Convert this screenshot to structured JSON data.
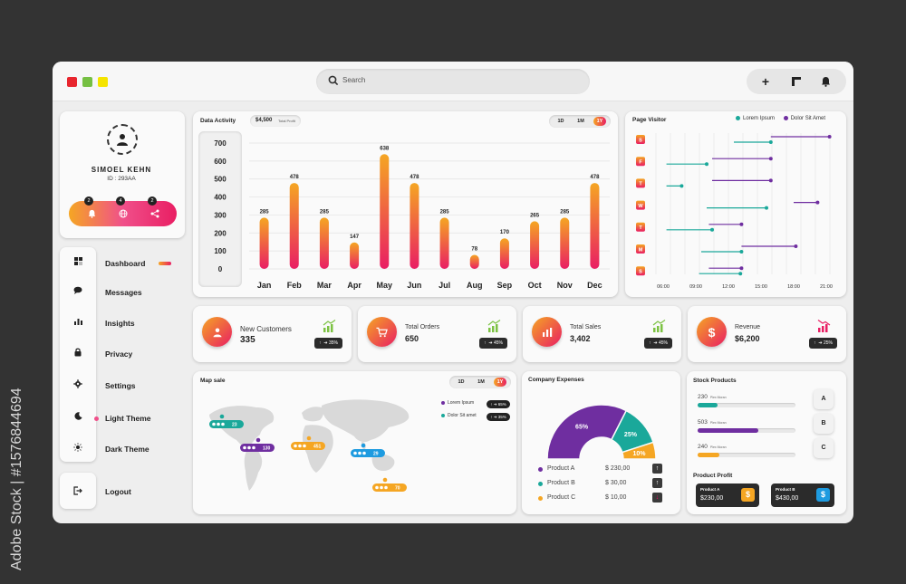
{
  "watermark": "Adobe Stock | #1576844694",
  "search": {
    "placeholder": "Search"
  },
  "profile": {
    "name": "SIMOEL KEHN",
    "id": "ID : 293AA",
    "badges": [
      "2",
      "4",
      "2"
    ]
  },
  "nav": {
    "items": [
      {
        "label": "Dashboard",
        "icon": "grid-icon"
      },
      {
        "label": "Messages",
        "icon": "chat-icon"
      },
      {
        "label": "Insights",
        "icon": "bar-chart-icon"
      },
      {
        "label": "Privacy",
        "icon": "lock-icon"
      },
      {
        "label": "Settings",
        "icon": "gear-icon"
      },
      {
        "label": "Light Theme",
        "icon": "moon-icon"
      },
      {
        "label": "Dark Theme",
        "icon": "sun-icon"
      }
    ],
    "logout": "Logout"
  },
  "data_activity": {
    "title": "Data Activity",
    "total_value": "$4,500",
    "total_label": "Total Profit",
    "ranges": [
      "1D",
      "1M",
      "1Y"
    ],
    "selected_range": "1Y"
  },
  "chart_data": [
    {
      "type": "bar",
      "title": "Data Activity",
      "categories": [
        "Jan",
        "Feb",
        "Mar",
        "Apr",
        "May",
        "Jun",
        "Jul",
        "Aug",
        "Sep",
        "Oct",
        "Nov",
        "Dec"
      ],
      "values": [
        285,
        478,
        285,
        147,
        638,
        478,
        285,
        78,
        170,
        265,
        285,
        478
      ],
      "ylim": [
        0,
        700
      ],
      "yticks": [
        700,
        600,
        500,
        400,
        300,
        200,
        100,
        0
      ],
      "grid": true,
      "colors": [
        "#f5a623",
        "#e91e63"
      ]
    },
    {
      "type": "scatter",
      "title": "Page Visitor",
      "categories": [
        "S",
        "F",
        "T",
        "W",
        "T",
        "M",
        "S"
      ],
      "x_ticks": [
        "06:00",
        "09:00",
        "12:00",
        "15:00",
        "18:00",
        "21:00"
      ],
      "legend_position": "top-right",
      "series": [
        {
          "name": "Lorem Ipsum",
          "color": "#1aa89a",
          "ranges": [
            [
              12.5,
              15.9
            ],
            [
              6.3,
              10.0
            ],
            [
              6.3,
              7.7
            ],
            [
              10.0,
              15.5
            ],
            [
              6.3,
              10.5
            ],
            [
              9.5,
              13.2
            ],
            [
              9.3,
              13.1
            ]
          ]
        },
        {
          "name": "Dolor Sit Amet",
          "color": "#6f2ea0",
          "ranges": [
            [
              15.9,
              21.3
            ],
            [
              10.5,
              15.9
            ],
            [
              10.5,
              15.9
            ],
            [
              18.0,
              20.2
            ],
            [
              10.2,
              13.2
            ],
            [
              13.2,
              18.2
            ],
            [
              10.2,
              13.2
            ]
          ]
        }
      ]
    },
    {
      "type": "scatter",
      "title": "Map sale",
      "ranges": [
        "1D",
        "1M",
        "1Y"
      ],
      "selected_range": "1Y",
      "legend_position": "top-right",
      "series": [
        {
          "name": "Lorem Ipsum",
          "color": "#6f2ea0",
          "change": "65%"
        },
        {
          "name": "Dolor Sit amet",
          "color": "#1aa89a",
          "change": "35%"
        }
      ],
      "markers": [
        {
          "label": "23",
          "color": "#1aa89a"
        },
        {
          "label": "130",
          "color": "#6f2ea0"
        },
        {
          "label": "451",
          "color": "#f5a623"
        },
        {
          "label": "29",
          "color": "#1e9be0"
        },
        {
          "label": "70",
          "color": "#f5a623"
        }
      ]
    },
    {
      "type": "pie",
      "title": "Company Expenses",
      "categories": [
        "Product A",
        "Product B",
        "Product C"
      ],
      "values": [
        65,
        25,
        10
      ],
      "labels": [
        "65%",
        "25%",
        "10%"
      ],
      "colors": [
        "#6f2ea0",
        "#1aa89a",
        "#f5a623"
      ]
    }
  ],
  "stats": [
    {
      "label": "New Customers",
      "value": "335",
      "change": "35%",
      "icon": "user-icon"
    },
    {
      "label": "Total Orders",
      "value": "650",
      "change": "45%",
      "icon": "cart-icon"
    },
    {
      "label": "Total Sales",
      "value": "3,402",
      "change": "45%",
      "icon": "chart-icon"
    },
    {
      "label": "Revenue",
      "value": "$6,200",
      "change": "25%",
      "icon": "dollar-icon"
    }
  ],
  "expenses": {
    "rows": [
      {
        "name": "Product A",
        "value": "$ 230,00",
        "trend": "up"
      },
      {
        "name": "Product B",
        "value": "$ 30,00",
        "trend": "up"
      },
      {
        "name": "Product C",
        "value": "$ 10,00",
        "trend": "down"
      }
    ]
  },
  "stock": {
    "title": "Stock Products",
    "items": [
      {
        "value": "230",
        "sub": "Plex Moran",
        "level": 0.2,
        "color": "#1aa89a",
        "button": "A"
      },
      {
        "value": "503",
        "sub": "Plex Moran",
        "level": 0.62,
        "color": "#6f2ea0",
        "button": "B"
      },
      {
        "value": "240",
        "sub": "Plex Moran",
        "level": 0.22,
        "color": "#f5a623",
        "button": "C"
      }
    ],
    "profit_title": "Product Profit",
    "profit": [
      {
        "name": "Product A",
        "value": "$230,00",
        "color": "#f5a623"
      },
      {
        "name": "Product B",
        "value": "$430,00",
        "color": "#1e9be0"
      }
    ]
  }
}
